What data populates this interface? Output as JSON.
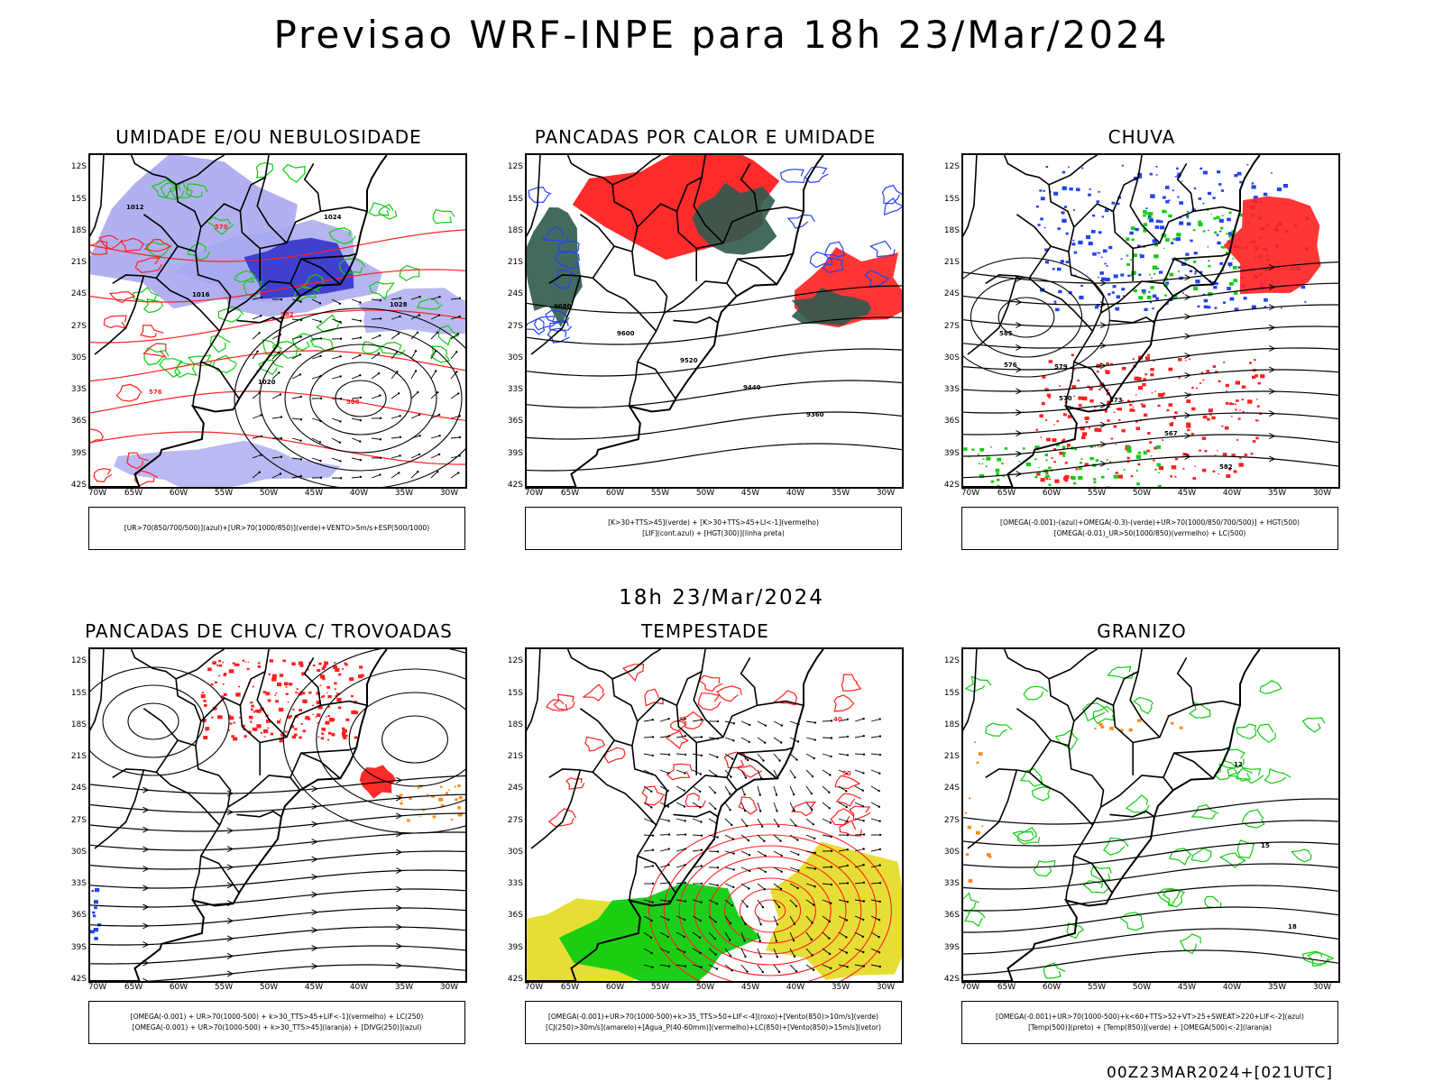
{
  "main_title": "Previsao WRF-INPE  para 18h 23/Mar/2024",
  "mid_title": "18h 23/Mar/2024",
  "footer": "00Z23MAR2024+[021UTC]",
  "axes": {
    "lat_labels": [
      "12S",
      "15S",
      "18S",
      "21S",
      "24S",
      "27S",
      "30S",
      "33S",
      "36S",
      "39S",
      "42S"
    ],
    "lon_labels": [
      "70W",
      "65W",
      "60W",
      "55W",
      "50W",
      "45W",
      "40W",
      "35W",
      "30W"
    ]
  },
  "colors": {
    "green": "#11cc11",
    "red": "#ff2020",
    "blue": "#2244ee",
    "lavender": "#a8a8f0",
    "darkblue": "#3333cc",
    "darkteal": "#2e5a4e",
    "yellow": "#e6dc2a",
    "orange": "#ff8c1a",
    "black": "#000000"
  },
  "panels": [
    {
      "title": "UMIDADE E/OU NEBULOSIDADE",
      "legend": [
        "[UR>70(850/700/500)](azul)+[UR>70(1000/850)](verde)+VENTO>5m/s+ESP(500/1000)"
      ],
      "labels": [
        "1012",
        "1016",
        "1020",
        "1024",
        "1028",
        "576",
        "570",
        "582",
        "588"
      ]
    },
    {
      "title": "PANCADAS POR CALOR E UMIDADE",
      "legend": [
        "[K>30+TTS>45](verde) + [K>30+TTS>45+LI<-1](vermelho)",
        "[LIF](cont.azul) + [HGT(300)](linha preta)"
      ],
      "labels": [
        "9680",
        "9600",
        "9520",
        "9440",
        "9360"
      ]
    },
    {
      "title": "CHUVA",
      "legend": [
        "[OMEGA(-0.001)-(azul)+OMEGA(-0.3)-(verde)+UR>70(1000/850/700/500)] + HGT(500)",
        "[OMEGA(-0.01)_UR>50(1000/850)(vermelho) + LC(500)"
      ],
      "labels": [
        "585",
        "579",
        "573",
        "567",
        "582",
        "576",
        "570"
      ]
    },
    {
      "title": "PANCADAS DE CHUVA C/ TROVOADAS",
      "legend": [
        "[OMEGA(-0.001) + UR>70(1000-500) + k>30_TTS>45+LIF<-1](vermelho) + LC(250)",
        "[OMEGA(-0.001) + UR>70(1000-500) + k>30_TTS>45](laranja) + [DIVG(250)](azul)"
      ],
      "labels": []
    },
    {
      "title": "TEMPESTADE",
      "legend": [
        "[OMEGA(-0.001)+UR>70(1000-500)+k>35_TTS>50+LIF<-4](roxo)+[Vento(850)>10m/s](verde)",
        "[CJ(250)>30m/s](amarelo)+[Agua_P(40-60mm)](vermelho)+LC(850)+[Vento(850)>15m/s](vetor)"
      ],
      "labels": [
        "40",
        "50"
      ]
    },
    {
      "title": "GRANIZO",
      "legend": [
        "[OMEGA(-0.001)+UR>70(1000-500)+k<60+TTS>52+VT>25+SWEAT>220+LIF<-2](azul)",
        "[Temp(500)](preto) + [Temp(850)](verde) + [OMEGA(500)<-2](laranja)"
      ],
      "labels": [
        "12",
        "15",
        "18"
      ]
    }
  ]
}
